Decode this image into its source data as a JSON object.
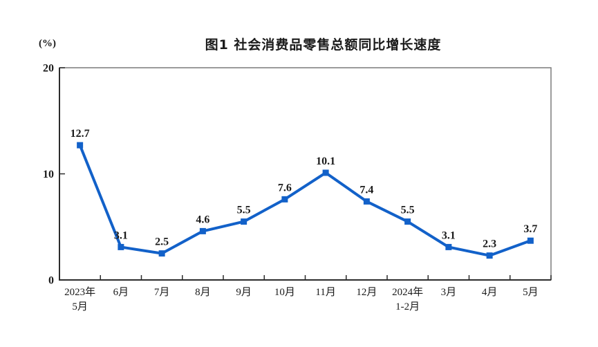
{
  "page": {
    "background": "#ffffff"
  },
  "chart_data": {
    "type": "line",
    "title": "图1  社会消费品零售总额同比增长速度",
    "unit_label": "(%)",
    "categories": [
      "2023年\n5月",
      "6月",
      "7月",
      "8月",
      "9月",
      "10月",
      "11月",
      "12月",
      "2024年\n1-2月",
      "3月",
      "4月",
      "5月"
    ],
    "values": [
      12.7,
      3.1,
      2.5,
      4.6,
      5.5,
      7.6,
      10.1,
      7.4,
      5.5,
      3.1,
      2.3,
      3.7
    ],
    "ylabel": "",
    "xlabel": "",
    "ylim": [
      0,
      20
    ],
    "yticks": [
      0,
      10,
      20
    ],
    "grid": false,
    "legend": "none",
    "marker": "square",
    "colors": {
      "line": "#1261c9",
      "marker": "#1261c9",
      "text": "#1a1a1a",
      "plot_border": "#7a7a7a",
      "axis": "#2b2b2b"
    }
  }
}
